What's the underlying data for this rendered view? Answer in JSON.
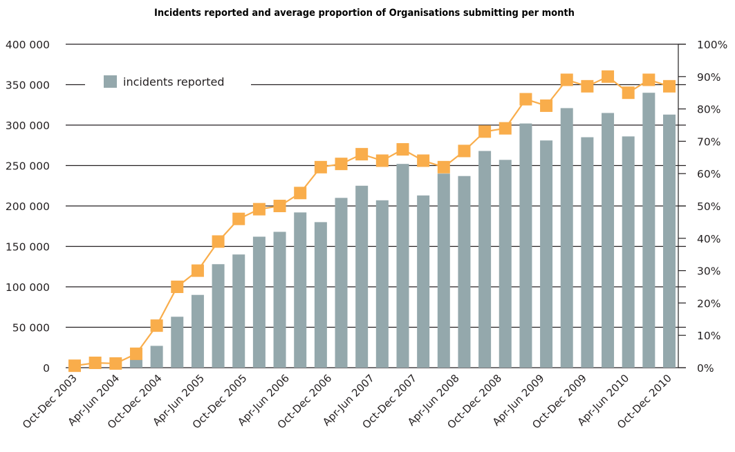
{
  "chart_data": {
    "type": "bar",
    "title": "Incidents reported and average proportion of Organisations submitting per month",
    "xlabel": "",
    "ylabel": "",
    "y2label": "",
    "ylim": [
      0,
      400000
    ],
    "y2lim": [
      0,
      100
    ],
    "yticks": [
      "0",
      "50 000",
      "100 000",
      "150 000",
      "200 000",
      "250 000",
      "300 000",
      "350 000",
      "400 000"
    ],
    "ytick_values": [
      0,
      50000,
      100000,
      150000,
      200000,
      250000,
      300000,
      350000,
      400000
    ],
    "y2ticks": [
      "0%",
      "10%",
      "20%",
      "30%",
      "40%",
      "50%",
      "60%",
      "70%",
      "80%",
      "90%",
      "100%"
    ],
    "y2tick_values": [
      0,
      10,
      20,
      30,
      40,
      50,
      60,
      70,
      80,
      90,
      100
    ],
    "grid": true,
    "x_tick_labels": [
      "Oct-Dec 2003",
      "Apr-Jun 2004",
      "Oct-Dec 2004",
      "Apr-Jun 2005",
      "Oct-Dec 2005",
      "Apr-Jun 2006",
      "Oct-Dec 2006",
      "Apr-Jun 2007",
      "Oct-Dec 2007",
      "Apr-Jun 2008",
      "Oct-Dec 2008",
      "Apr-Jun 2009",
      "Oct-Dec 2009",
      "Apr-Jun 2010",
      "Oct-Dec 2010"
    ],
    "legend": {
      "placement": "top-left",
      "entries": [
        "incidents reported"
      ]
    },
    "series": [
      {
        "name": "incidents reported",
        "type": "bar",
        "axis": "left",
        "color": "#94a8ac",
        "values": [
          0,
          0,
          0,
          10000,
          27000,
          63000,
          90000,
          128000,
          140000,
          162000,
          168000,
          192000,
          180000,
          210000,
          225000,
          207000,
          252000,
          213000,
          240000,
          237000,
          268000,
          257000,
          302000,
          281000,
          321000,
          285000,
          315000,
          286000,
          340000,
          313000
        ]
      },
      {
        "name": "average proportion of Organisations submitting per month",
        "type": "line",
        "axis": "right",
        "unit": "%",
        "color": "#f9ad4b",
        "values": [
          0.6,
          1.5,
          1.3,
          4.3,
          13,
          25,
          30,
          39,
          46,
          49,
          50,
          54,
          62,
          63,
          66,
          64,
          67.5,
          64,
          62,
          67,
          73,
          74,
          83,
          81,
          89,
          87,
          90,
          85,
          89,
          87
        ]
      }
    ]
  }
}
